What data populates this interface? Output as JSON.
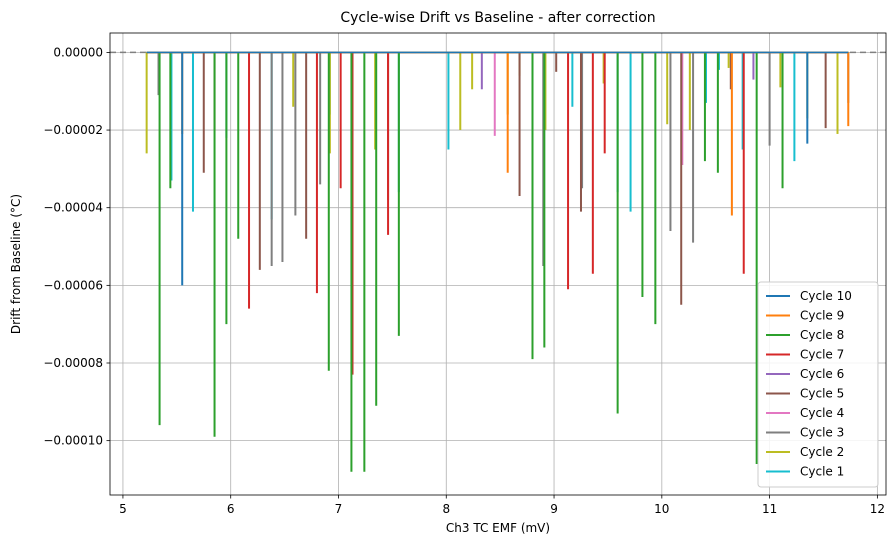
{
  "chart_data": {
    "type": "line",
    "title": "Cycle-wise Drift vs Baseline - after correction",
    "xlabel": "Ch3 TC EMF (mV)",
    "ylabel": "Drift from Baseline (°C)",
    "xlim": [
      4.88,
      12.08
    ],
    "ylim": [
      -0.000114,
      5e-06
    ],
    "xticks": [
      5,
      6,
      7,
      8,
      9,
      10,
      11,
      12
    ],
    "xtick_labels": [
      "5",
      "6",
      "7",
      "8",
      "9",
      "10",
      "11",
      "12"
    ],
    "yticks": [
      0,
      -2e-05,
      -4e-05,
      -6e-05,
      -8e-05,
      -0.0001
    ],
    "ytick_labels": [
      "0.00000",
      "−0.00002",
      "−0.00004",
      "−0.00006",
      "−0.00008",
      "−0.00010"
    ],
    "grid": true,
    "baseline": 0,
    "baseline_style": "dashed-gray",
    "legend_position": "lower-right",
    "series": [
      {
        "name": "Cycle 10",
        "color": "#1f77b4",
        "spikes": [
          [
            5.55,
            -6e-05
          ],
          [
            11.35,
            -2.35e-05
          ]
        ]
      },
      {
        "name": "Cycle 9",
        "color": "#ff7f0e",
        "spikes": [
          [
            5.55,
            -2.1e-05
          ],
          [
            8.57,
            -3.1e-05
          ],
          [
            10.65,
            -4.2e-05
          ],
          [
            11.73,
            -1.9e-05
          ]
        ]
      },
      {
        "name": "Cycle 8",
        "color": "#2ca02c",
        "spikes": [
          [
            5.34,
            -9.6e-05
          ],
          [
            5.44,
            -3.5e-05
          ],
          [
            5.85,
            -9.9e-05
          ],
          [
            5.96,
            -7e-05
          ],
          [
            6.07,
            -4.8e-05
          ],
          [
            6.91,
            -8.2e-05
          ],
          [
            7.12,
            -0.000108
          ],
          [
            7.24,
            -0.000108
          ],
          [
            7.35,
            -9.1e-05
          ],
          [
            7.56,
            -7.3e-05
          ],
          [
            8.8,
            -7.9e-05
          ],
          [
            8.91,
            -7.6e-05
          ],
          [
            9.59,
            -9.3e-05
          ],
          [
            9.82,
            -6.3e-05
          ],
          [
            9.94,
            -7e-05
          ],
          [
            10.4,
            -2.8e-05
          ],
          [
            10.52,
            -3.1e-05
          ],
          [
            10.88,
            -0.000106
          ],
          [
            11.12,
            -3.5e-05
          ]
        ]
      },
      {
        "name": "Cycle 7",
        "color": "#d62728",
        "spikes": [
          [
            5.85,
            -2e-05
          ],
          [
            6.17,
            -6.6e-05
          ],
          [
            6.8,
            -6.2e-05
          ],
          [
            7.02,
            -3.5e-05
          ],
          [
            7.13,
            -8.3e-05
          ],
          [
            7.46,
            -4.7e-05
          ],
          [
            9.13,
            -6.1e-05
          ],
          [
            9.36,
            -5.7e-05
          ],
          [
            9.47,
            -2.6e-05
          ],
          [
            10.76,
            -5.7e-05
          ]
        ]
      },
      {
        "name": "Cycle 6",
        "color": "#9467bd",
        "spikes": [
          [
            8.33,
            -9.5e-06
          ],
          [
            10.85,
            -7e-06
          ]
        ]
      },
      {
        "name": "Cycle 5",
        "color": "#8c564b",
        "spikes": [
          [
            5.75,
            -3.1e-05
          ],
          [
            6.27,
            -5.6e-05
          ],
          [
            6.7,
            -4.8e-05
          ],
          [
            7.46,
            -3.8e-05
          ],
          [
            8.68,
            -3.7e-05
          ],
          [
            9.02,
            -5e-06
          ],
          [
            9.25,
            -4.1e-05
          ],
          [
            10.18,
            -6.5e-05
          ],
          [
            10.64,
            -9.5e-06
          ],
          [
            11.52,
            -1.95e-05
          ]
        ]
      },
      {
        "name": "Cycle 4",
        "color": "#e377c2",
        "spikes": [
          [
            8.45,
            -2.15e-05
          ],
          [
            10.19,
            -2.9e-05
          ]
        ]
      },
      {
        "name": "Cycle 3",
        "color": "#7f7f7f",
        "spikes": [
          [
            5.33,
            -1.1e-05
          ],
          [
            6.38,
            -5.5e-05
          ],
          [
            6.48,
            -5.4e-05
          ],
          [
            6.6,
            -4.2e-05
          ],
          [
            6.83,
            -3.4e-05
          ],
          [
            8.9,
            -5.5e-05
          ],
          [
            9.26,
            -3.5e-05
          ],
          [
            10.08,
            -4.6e-05
          ],
          [
            10.29,
            -4.9e-05
          ],
          [
            11.0,
            -2.4e-05
          ],
          [
            11.73,
            -1.3e-05
          ]
        ]
      },
      {
        "name": "Cycle 2",
        "color": "#bcbd22",
        "spikes": [
          [
            5.22,
            -2.6e-05
          ],
          [
            6.58,
            -1.4e-05
          ],
          [
            6.92,
            -2.6e-05
          ],
          [
            7.13,
            -2.1e-05
          ],
          [
            7.34,
            -2.5e-05
          ],
          [
            8.13,
            -2e-05
          ],
          [
            8.24,
            -9.5e-06
          ],
          [
            8.57,
            -1.6e-05
          ],
          [
            8.68,
            -6e-06
          ],
          [
            8.92,
            -2e-05
          ],
          [
            9.46,
            -8e-06
          ],
          [
            10.05,
            -1.85e-05
          ],
          [
            10.26,
            -2e-05
          ],
          [
            10.62,
            -4e-06
          ],
          [
            11.1,
            -9e-06
          ],
          [
            11.35,
            -1.7e-05
          ],
          [
            11.63,
            -2.1e-05
          ]
        ]
      },
      {
        "name": "Cycle 1",
        "color": "#17becf",
        "spikes": [
          [
            5.45,
            -3.3e-05
          ],
          [
            5.65,
            -4.1e-05
          ],
          [
            5.96,
            -2.2e-05
          ],
          [
            6.38,
            -4.3e-05
          ],
          [
            6.92,
            -1.6e-05
          ],
          [
            7.56,
            -3.6e-05
          ],
          [
            8.02,
            -2.5e-05
          ],
          [
            8.8,
            -5.3e-05
          ],
          [
            9.17,
            -1.4e-05
          ],
          [
            9.59,
            -3.6e-05
          ],
          [
            9.71,
            -4.1e-05
          ],
          [
            10.41,
            -1.3e-05
          ],
          [
            10.53,
            -4.5e-06
          ],
          [
            10.75,
            -2.5e-05
          ],
          [
            11.23,
            -2.8e-05
          ]
        ]
      }
    ]
  }
}
